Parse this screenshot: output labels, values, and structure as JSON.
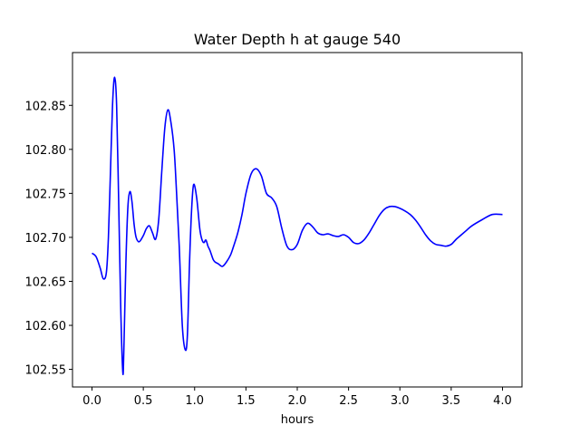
{
  "chart_data": {
    "type": "line",
    "title": "Water Depth h at gauge 540",
    "xlabel": "hours",
    "ylabel": "",
    "xlim": [
      -0.19,
      4.19
    ],
    "ylim": [
      102.53,
      102.91
    ],
    "xticks": [
      0.0,
      0.5,
      1.0,
      1.5,
      2.0,
      2.5,
      3.0,
      3.5,
      4.0
    ],
    "xtick_labels": [
      "0.0",
      "0.5",
      "1.0",
      "1.5",
      "2.0",
      "2.5",
      "3.0",
      "3.5",
      "4.0"
    ],
    "yticks": [
      102.55,
      102.6,
      102.65,
      102.7,
      102.75,
      102.8,
      102.85
    ],
    "ytick_labels": [
      "102.55",
      "102.60",
      "102.65",
      "102.70",
      "102.75",
      "102.80",
      "102.85"
    ],
    "grid": false,
    "legend": "none",
    "colors": {
      "line": "#0000ff",
      "axes": "#000000",
      "background": "#ffffff"
    },
    "series": [
      {
        "x": [
          0.0,
          0.04,
          0.08,
          0.11,
          0.14,
          0.16,
          0.18,
          0.2,
          0.22,
          0.24,
          0.26,
          0.28,
          0.3,
          0.31,
          0.33,
          0.35,
          0.37,
          0.39,
          0.41,
          0.43,
          0.46,
          0.5,
          0.53,
          0.56,
          0.59,
          0.62,
          0.65,
          0.68,
          0.71,
          0.74,
          0.77,
          0.8,
          0.82,
          0.85,
          0.88,
          0.91,
          0.93,
          0.95,
          0.97,
          0.99,
          1.02,
          1.05,
          1.07,
          1.09,
          1.11,
          1.13,
          1.15,
          1.18,
          1.2,
          1.23,
          1.27,
          1.31,
          1.35,
          1.38,
          1.42,
          1.46,
          1.5,
          1.55,
          1.6,
          1.65,
          1.7,
          1.75,
          1.8,
          1.85,
          1.9,
          1.95,
          2.0,
          2.05,
          2.1,
          2.15,
          2.2,
          2.25,
          2.3,
          2.35,
          2.4,
          2.45,
          2.5,
          2.55,
          2.6,
          2.65,
          2.7,
          2.75,
          2.8,
          2.85,
          2.9,
          2.95,
          3.0,
          3.05,
          3.1,
          3.15,
          3.2,
          3.25,
          3.3,
          3.35,
          3.4,
          3.45,
          3.5,
          3.55,
          3.6,
          3.65,
          3.7,
          3.8,
          3.9,
          4.0
        ],
        "y": [
          102.682,
          102.678,
          102.665,
          102.653,
          102.66,
          102.7,
          102.775,
          102.85,
          102.882,
          102.85,
          102.74,
          102.62,
          102.547,
          102.57,
          102.67,
          102.735,
          102.752,
          102.74,
          102.715,
          102.7,
          102.695,
          102.702,
          102.71,
          102.713,
          102.705,
          102.698,
          102.72,
          102.775,
          102.825,
          102.845,
          102.83,
          102.8,
          102.76,
          102.69,
          102.6,
          102.572,
          102.59,
          102.67,
          102.73,
          102.76,
          102.745,
          102.71,
          102.698,
          102.694,
          102.697,
          102.69,
          102.685,
          102.675,
          102.672,
          102.67,
          102.667,
          102.672,
          102.68,
          102.69,
          102.705,
          102.725,
          102.75,
          102.772,
          102.778,
          102.77,
          102.75,
          102.745,
          102.735,
          102.71,
          102.69,
          102.686,
          102.692,
          102.708,
          102.716,
          102.712,
          102.705,
          102.703,
          102.704,
          102.702,
          102.701,
          102.703,
          102.7,
          102.694,
          102.693,
          102.697,
          102.705,
          102.715,
          102.725,
          102.732,
          102.735,
          102.735,
          102.733,
          102.73,
          102.726,
          102.72,
          102.712,
          102.703,
          102.696,
          102.692,
          102.691,
          102.69,
          102.692,
          102.698,
          102.703,
          102.708,
          102.713,
          102.72,
          102.726,
          102.726
        ]
      }
    ]
  }
}
